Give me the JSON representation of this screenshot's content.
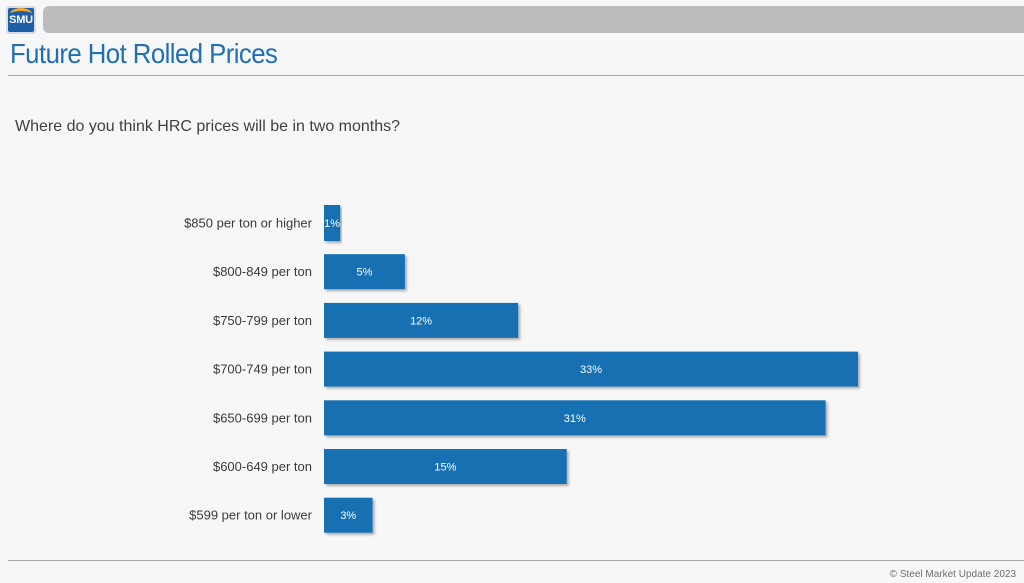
{
  "header": {
    "logo_text": "SMU",
    "title": "Future Hot Rolled Prices"
  },
  "question": "Where do you think HRC prices will be in two months?",
  "footer": {
    "copyright": "© Steel Market Update 2023"
  },
  "colors": {
    "bar": "#1670b2",
    "title": "#1f6fb5",
    "top_bar": "#bcbcbc"
  },
  "chart_data": {
    "type": "bar",
    "orientation": "horizontal",
    "title": "",
    "xlabel": "",
    "ylabel": "",
    "categories": [
      "$850 per ton or higher",
      "$800-849 per ton",
      "$750-799 per ton",
      "$700-749 per ton",
      "$650-699 per ton",
      "$600-649 per ton",
      "$599 per ton or lower"
    ],
    "values": [
      1,
      5,
      12,
      33,
      31,
      15,
      3
    ],
    "value_labels": [
      "1%",
      "5%",
      "12%",
      "33%",
      "31%",
      "15%",
      "3%"
    ],
    "value_unit": "%",
    "xlim": [
      0,
      33
    ],
    "grid": false,
    "legend": "none"
  }
}
